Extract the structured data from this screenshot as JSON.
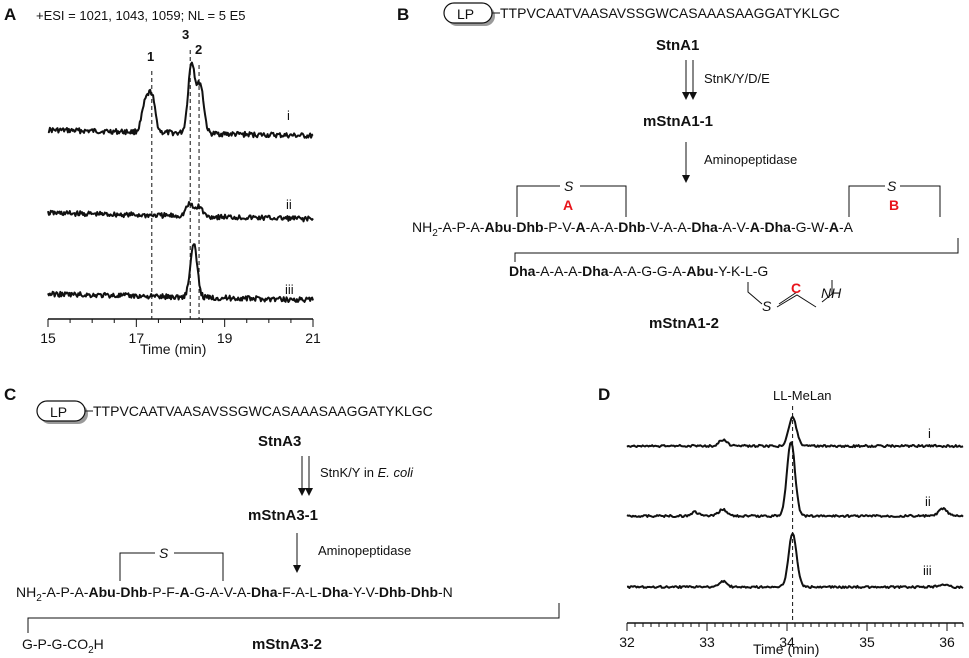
{
  "panels": {
    "A": "A",
    "B": "B",
    "C": "C",
    "D": "D"
  },
  "panelA": {
    "header": "+ESI = 1021, 1043, 1059; NL = 5 E5",
    "peak_labels": [
      "1",
      "3",
      "2"
    ],
    "trace_labels": [
      "i",
      "ii",
      "iii"
    ],
    "xlabel": "Time (min)"
  },
  "panelB": {
    "lp": "LP",
    "leader_seq": "TTPVCAATVAASAVSSGWCASAAASAAGGATYKLGC",
    "name1": "StnA1",
    "enzyme1": "StnK/Y/D/E",
    "name2": "mStnA1-1",
    "enzyme2": "Aminopeptidase",
    "ring_s": "S",
    "ring_A": "A",
    "ring_B": "B",
    "ring_C": "C",
    "nh2": "NH",
    "nh2_sub": "2",
    "nh_label": "NH",
    "name3": "mStnA1-2"
  },
  "panelC": {
    "lp": "LP",
    "leader_seq": "TTPVCAATVAASAVSSGWCASAAASAAGGATYKLGC",
    "name1": "StnA3",
    "enzyme1": "StnK/Y in ",
    "enzyme1_host": "E. coli",
    "name2": "mStnA3-1",
    "enzyme2": "Aminopeptidase",
    "ring_s": "S",
    "nh2": "NH",
    "nh2_sub": "2",
    "tail_pre": "G-P-G-CO",
    "tail_sub": "2",
    "tail_post": "H",
    "name3": "mStnA3-2"
  },
  "panelD": {
    "marker": "LL-MeLan",
    "trace_labels": [
      "i",
      "ii",
      "iii"
    ],
    "xlabel": "Time (min)"
  },
  "chart_data": [
    {
      "type": "line",
      "panel": "A",
      "title": "+ESI = 1021, 1043, 1059; NL = 5 E5",
      "xlabel": "Time (min)",
      "xlim": [
        15,
        21
      ],
      "x_ticks": [
        15,
        17,
        19,
        21
      ],
      "reference_lines": [
        {
          "label": "1",
          "x": 17.35
        },
        {
          "label": "3",
          "x": 18.22
        },
        {
          "label": "2",
          "x": 18.42
        }
      ],
      "series": [
        {
          "name": "i",
          "peaks": [
            {
              "x": 17.2,
              "rel": 0.38
            },
            {
              "x": 17.35,
              "rel": 0.5
            },
            {
              "x": 18.25,
              "rel": 1.0
            },
            {
              "x": 18.45,
              "rel": 0.68
            }
          ]
        },
        {
          "name": "ii",
          "peaks": [
            {
              "x": 18.2,
              "rel": 0.17
            },
            {
              "x": 18.42,
              "rel": 0.14
            }
          ]
        },
        {
          "name": "iii",
          "peaks": [
            {
              "x": 18.3,
              "rel": 0.75
            }
          ]
        }
      ]
    },
    {
      "type": "line",
      "panel": "D",
      "xlabel": "Time (min)",
      "xlim": [
        32,
        36.2
      ],
      "x_ticks": [
        32,
        33,
        34,
        35,
        36
      ],
      "reference_lines": [
        {
          "label": "LL-MeLan",
          "x": 34.07
        }
      ],
      "series": [
        {
          "name": "i",
          "peaks": [
            {
              "x": 33.2,
              "rel": 0.08
            },
            {
              "x": 34.07,
              "rel": 0.38
            }
          ]
        },
        {
          "name": "ii",
          "peaks": [
            {
              "x": 32.85,
              "rel": 0.05
            },
            {
              "x": 33.2,
              "rel": 0.09
            },
            {
              "x": 34.05,
              "rel": 1.0
            },
            {
              "x": 35.95,
              "rel": 0.1
            }
          ]
        },
        {
          "name": "iii",
          "peaks": [
            {
              "x": 33.2,
              "rel": 0.08
            },
            {
              "x": 34.07,
              "rel": 0.72
            },
            {
              "x": 35.95,
              "rel": 0.04
            }
          ]
        }
      ]
    }
  ]
}
